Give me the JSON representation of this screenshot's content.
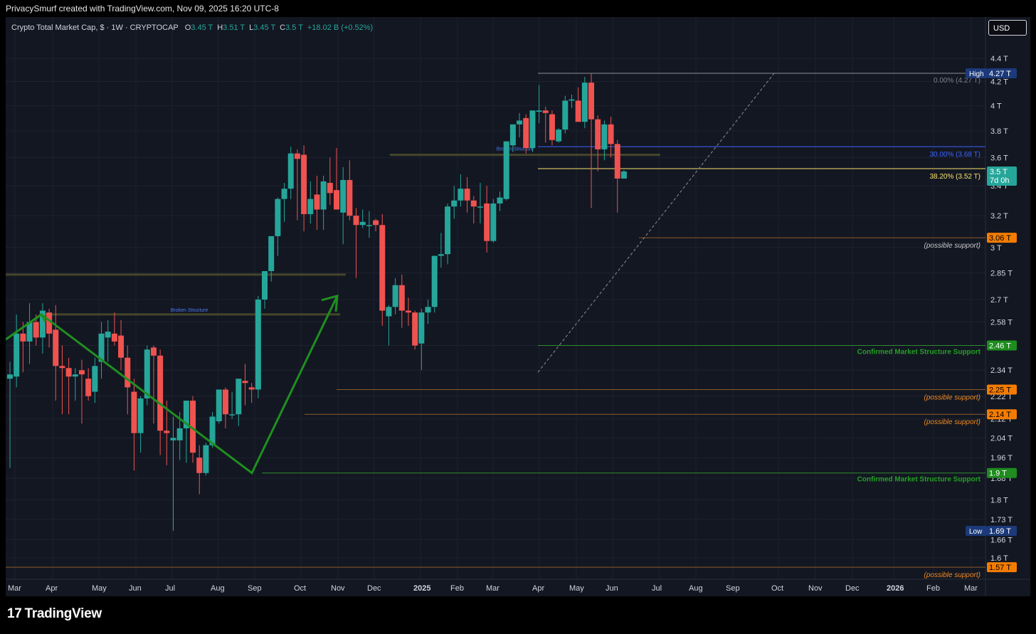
{
  "header": {
    "attribution": "PrivacySmurf created with TradingView.com, Nov 09, 2025 16:20 UTC-8"
  },
  "legend": {
    "symbol": "Crypto Total Market Cap, $ · 1W · CRYPTOCAP",
    "o_label": "O",
    "o": "3.45 T",
    "h_label": "H",
    "h": "3.51 T",
    "l_label": "L",
    "l": "3.45 T",
    "c_label": "C",
    "c": "3.5 T",
    "change": "+18.02 B (+0.52%)"
  },
  "currency_button": "USD",
  "brand": {
    "logo": "17",
    "name": "TradingView"
  },
  "colors": {
    "up": "#26a69a",
    "down": "#ef5350",
    "bg": "#131722",
    "green_line": "#1e8c1e",
    "orange": "#f57c00",
    "blue_fib": "#3d63ff",
    "yellow_fib": "#f7e36a",
    "navy_label": "#1c3a7a"
  },
  "chart_data": {
    "type": "candlestick",
    "title": "Crypto Total Market Cap",
    "y_unit": "T",
    "y_ticks": [
      "4.4 T",
      "4.2 T",
      "4 T",
      "3.8 T",
      "3.6 T",
      "3.4 T",
      "3.2 T",
      "3 T",
      "2.85 T",
      "2.7 T",
      "2.58 T",
      "2.46 T",
      "2.34 T",
      "2.22 T",
      "2.12 T",
      "2.04 T",
      "1.96 T",
      "1.88 T",
      "1.8 T",
      "1.73 T",
      "1.66 T",
      "1.6 T"
    ],
    "x_ticks": [
      "Mar",
      "Apr",
      "May",
      "Jun",
      "Jul",
      "Aug",
      "Sep",
      "Oct",
      "Nov",
      "Dec",
      "2025",
      "Feb",
      "Mar",
      "Apr",
      "May",
      "Jun",
      "Jul",
      "Aug",
      "Sep",
      "Oct",
      "Nov",
      "Dec",
      "2026",
      "Feb",
      "Mar"
    ],
    "x_ticks_bold": [
      "2025",
      "2026"
    ],
    "candles": [
      {
        "o": 2.3,
        "h": 2.38,
        "l": 1.92,
        "c": 2.32
      },
      {
        "o": 2.31,
        "h": 2.62,
        "l": 2.26,
        "c": 2.52
      },
      {
        "o": 2.52,
        "h": 2.58,
        "l": 2.33,
        "c": 2.48
      },
      {
        "o": 2.48,
        "h": 2.68,
        "l": 2.37,
        "c": 2.58
      },
      {
        "o": 2.58,
        "h": 2.62,
        "l": 2.46,
        "c": 2.5
      },
      {
        "o": 2.5,
        "h": 2.68,
        "l": 2.42,
        "c": 2.64
      },
      {
        "o": 2.63,
        "h": 2.65,
        "l": 2.45,
        "c": 2.52
      },
      {
        "o": 2.54,
        "h": 2.67,
        "l": 2.2,
        "c": 2.36
      },
      {
        "o": 2.36,
        "h": 2.46,
        "l": 2.14,
        "c": 2.35
      },
      {
        "o": 2.35,
        "h": 2.4,
        "l": 2.14,
        "c": 2.31
      },
      {
        "o": 2.31,
        "h": 2.35,
        "l": 2.2,
        "c": 2.32
      },
      {
        "o": 2.34,
        "h": 2.39,
        "l": 2.1,
        "c": 2.32
      },
      {
        "o": 2.3,
        "h": 2.35,
        "l": 2.2,
        "c": 2.22
      },
      {
        "o": 2.24,
        "h": 2.4,
        "l": 2.19,
        "c": 2.36
      },
      {
        "o": 2.38,
        "h": 2.58,
        "l": 2.3,
        "c": 2.52
      },
      {
        "o": 2.5,
        "h": 2.59,
        "l": 2.38,
        "c": 2.53
      },
      {
        "o": 2.52,
        "h": 2.63,
        "l": 2.46,
        "c": 2.48
      },
      {
        "o": 2.51,
        "h": 2.59,
        "l": 2.34,
        "c": 2.4
      },
      {
        "o": 2.4,
        "h": 2.46,
        "l": 2.14,
        "c": 2.26
      },
      {
        "o": 2.24,
        "h": 2.3,
        "l": 1.91,
        "c": 2.06
      },
      {
        "o": 2.06,
        "h": 2.22,
        "l": 1.98,
        "c": 2.21
      },
      {
        "o": 2.21,
        "h": 2.46,
        "l": 2.18,
        "c": 2.44
      },
      {
        "o": 2.45,
        "h": 2.46,
        "l": 2.1,
        "c": 2.41
      },
      {
        "o": 2.41,
        "h": 2.44,
        "l": 1.97,
        "c": 2.07
      },
      {
        "o": 2.07,
        "h": 2.2,
        "l": 1.93,
        "c": 2.06
      },
      {
        "o": 2.03,
        "h": 2.13,
        "l": 1.69,
        "c": 2.04
      },
      {
        "o": 2.03,
        "h": 2.15,
        "l": 1.95,
        "c": 2.08
      },
      {
        "o": 2.08,
        "h": 2.2,
        "l": 1.94,
        "c": 2.2
      },
      {
        "o": 2.2,
        "h": 2.22,
        "l": 1.94,
        "c": 1.98
      },
      {
        "o": 1.96,
        "h": 2.01,
        "l": 1.82,
        "c": 1.9
      },
      {
        "o": 1.9,
        "h": 2.02,
        "l": 1.89,
        "c": 2.01
      },
      {
        "o": 2.01,
        "h": 2.15,
        "l": 2.0,
        "c": 2.13
      },
      {
        "o": 2.11,
        "h": 2.25,
        "l": 2.1,
        "c": 2.25
      },
      {
        "o": 2.25,
        "h": 2.26,
        "l": 2.08,
        "c": 2.14
      },
      {
        "o": 2.14,
        "h": 2.24,
        "l": 2.12,
        "c": 2.14
      },
      {
        "o": 2.14,
        "h": 2.3,
        "l": 2.09,
        "c": 2.3
      },
      {
        "o": 2.29,
        "h": 2.37,
        "l": 2.18,
        "c": 2.28
      },
      {
        "o": 2.26,
        "h": 2.28,
        "l": 2.19,
        "c": 2.25
      },
      {
        "o": 2.25,
        "h": 2.72,
        "l": 2.21,
        "c": 2.7
      },
      {
        "o": 2.7,
        "h": 2.86,
        "l": 2.65,
        "c": 2.86
      },
      {
        "o": 2.86,
        "h": 3.07,
        "l": 2.8,
        "c": 3.07
      },
      {
        "o": 3.07,
        "h": 3.32,
        "l": 2.95,
        "c": 3.31
      },
      {
        "o": 3.31,
        "h": 3.42,
        "l": 3.16,
        "c": 3.38
      },
      {
        "o": 3.38,
        "h": 3.68,
        "l": 3.31,
        "c": 3.63
      },
      {
        "o": 3.63,
        "h": 3.66,
        "l": 3.17,
        "c": 3.59
      },
      {
        "o": 3.62,
        "h": 3.69,
        "l": 3.1,
        "c": 3.21
      },
      {
        "o": 3.21,
        "h": 3.43,
        "l": 3.15,
        "c": 3.31
      },
      {
        "o": 3.34,
        "h": 3.47,
        "l": 3.11,
        "c": 3.24
      },
      {
        "o": 3.24,
        "h": 3.47,
        "l": 3.11,
        "c": 3.43
      },
      {
        "o": 3.42,
        "h": 3.6,
        "l": 3.27,
        "c": 3.35
      },
      {
        "o": 3.37,
        "h": 3.67,
        "l": 3.25,
        "c": 3.24
      },
      {
        "o": 3.22,
        "h": 3.53,
        "l": 3.02,
        "c": 3.44
      },
      {
        "o": 3.44,
        "h": 3.58,
        "l": 3.17,
        "c": 3.2
      },
      {
        "o": 3.2,
        "h": 3.25,
        "l": 2.82,
        "c": 3.14
      },
      {
        "o": 3.14,
        "h": 3.24,
        "l": 3.12,
        "c": 3.16
      },
      {
        "o": 3.14,
        "h": 3.23,
        "l": 3.06,
        "c": 3.14
      },
      {
        "o": 3.17,
        "h": 3.18,
        "l": 3.1,
        "c": 3.14
      },
      {
        "o": 3.14,
        "h": 3.21,
        "l": 2.56,
        "c": 2.64
      },
      {
        "o": 2.61,
        "h": 2.67,
        "l": 2.46,
        "c": 2.66
      },
      {
        "o": 2.66,
        "h": 2.82,
        "l": 2.62,
        "c": 2.78
      },
      {
        "o": 2.78,
        "h": 2.84,
        "l": 2.55,
        "c": 2.64
      },
      {
        "o": 2.64,
        "h": 2.71,
        "l": 2.56,
        "c": 2.63
      },
      {
        "o": 2.63,
        "h": 2.64,
        "l": 2.44,
        "c": 2.46
      },
      {
        "o": 2.47,
        "h": 2.65,
        "l": 2.34,
        "c": 2.63
      },
      {
        "o": 2.63,
        "h": 2.7,
        "l": 2.57,
        "c": 2.66
      },
      {
        "o": 2.66,
        "h": 2.95,
        "l": 2.63,
        "c": 2.95
      },
      {
        "o": 2.95,
        "h": 3.09,
        "l": 2.88,
        "c": 2.96
      },
      {
        "o": 2.96,
        "h": 3.28,
        "l": 2.9,
        "c": 3.26
      },
      {
        "o": 3.26,
        "h": 3.4,
        "l": 3.18,
        "c": 3.3
      },
      {
        "o": 3.3,
        "h": 3.48,
        "l": 3.26,
        "c": 3.38
      },
      {
        "o": 3.38,
        "h": 3.46,
        "l": 3.22,
        "c": 3.3
      },
      {
        "o": 3.3,
        "h": 3.33,
        "l": 3.15,
        "c": 3.26
      },
      {
        "o": 3.26,
        "h": 3.42,
        "l": 3.15,
        "c": 3.26
      },
      {
        "o": 3.28,
        "h": 3.4,
        "l": 2.97,
        "c": 3.04
      },
      {
        "o": 3.04,
        "h": 3.31,
        "l": 3.03,
        "c": 3.28
      },
      {
        "o": 3.28,
        "h": 3.36,
        "l": 3.23,
        "c": 3.32
      },
      {
        "o": 3.31,
        "h": 3.72,
        "l": 3.3,
        "c": 3.72
      },
      {
        "o": 3.69,
        "h": 3.85,
        "l": 3.64,
        "c": 3.85
      },
      {
        "o": 3.85,
        "h": 3.94,
        "l": 3.75,
        "c": 3.88
      },
      {
        "o": 3.9,
        "h": 3.93,
        "l": 3.63,
        "c": 3.67
      },
      {
        "o": 3.67,
        "h": 3.96,
        "l": 3.64,
        "c": 3.96
      },
      {
        "o": 3.95,
        "h": 4.17,
        "l": 3.86,
        "c": 3.96
      },
      {
        "o": 3.96,
        "h": 3.99,
        "l": 3.71,
        "c": 3.94
      },
      {
        "o": 3.93,
        "h": 3.96,
        "l": 3.69,
        "c": 3.73
      },
      {
        "o": 3.72,
        "h": 3.82,
        "l": 3.71,
        "c": 3.81
      },
      {
        "o": 3.81,
        "h": 4.08,
        "l": 3.78,
        "c": 4.04
      },
      {
        "o": 4.04,
        "h": 4.09,
        "l": 3.98,
        "c": 4.05
      },
      {
        "o": 4.04,
        "h": 4.15,
        "l": 3.88,
        "c": 3.87
      },
      {
        "o": 3.87,
        "h": 4.24,
        "l": 3.82,
        "c": 4.19
      },
      {
        "o": 4.19,
        "h": 4.27,
        "l": 3.25,
        "c": 3.89
      },
      {
        "o": 3.89,
        "h": 3.92,
        "l": 3.5,
        "c": 3.66
      },
      {
        "o": 3.66,
        "h": 3.88,
        "l": 3.58,
        "c": 3.85
      },
      {
        "o": 3.85,
        "h": 3.91,
        "l": 3.6,
        "c": 3.7
      },
      {
        "o": 3.7,
        "h": 3.73,
        "l": 3.22,
        "c": 3.45
      },
      {
        "o": 3.45,
        "h": 3.51,
        "l": 3.45,
        "c": 3.5
      }
    ],
    "levels": [
      {
        "value": 4.27,
        "label": "High",
        "price_label": "4.27 T",
        "annotation": "0.00% (4.27 T)",
        "kind": "fib-high"
      },
      {
        "value": 3.68,
        "price_label": "",
        "annotation": "30.00% (3.68 T)",
        "kind": "fib-blue"
      },
      {
        "value": 3.52,
        "price_label": "",
        "annotation": "38.20% (3.52 T)",
        "kind": "fib-yellow"
      },
      {
        "value": 3.06,
        "price_label": "3.06 T",
        "annotation": "(possible support)",
        "kind": "orange"
      },
      {
        "value": 2.46,
        "price_label": "2.46 T",
        "annotation": "Confirmed Market Structure Support",
        "kind": "green"
      },
      {
        "value": 2.25,
        "price_label": "2.25 T",
        "annotation": "(possible support)",
        "kind": "orange"
      },
      {
        "value": 2.14,
        "price_label": "2.14 T",
        "annotation": "(possible support)",
        "kind": "orange"
      },
      {
        "value": 1.9,
        "price_label": "1.9 T",
        "annotation": "Confirmed Market Structure Support",
        "kind": "green"
      },
      {
        "value": 1.69,
        "label": "Low",
        "price_label": "1.69 T",
        "annotation": "",
        "kind": "low"
      },
      {
        "value": 1.57,
        "price_label": "1.57 T",
        "annotation": "(possible support)",
        "kind": "orange"
      }
    ],
    "current_price": {
      "value": 3.5,
      "label": "3.5 T",
      "countdown": "7d 0h"
    },
    "broken_structure": [
      {
        "label": "Broken Structure",
        "value": 2.62
      },
      {
        "label": "Broken Structure",
        "value": 3.62
      }
    ],
    "zone_line": {
      "value": 2.84
    }
  }
}
